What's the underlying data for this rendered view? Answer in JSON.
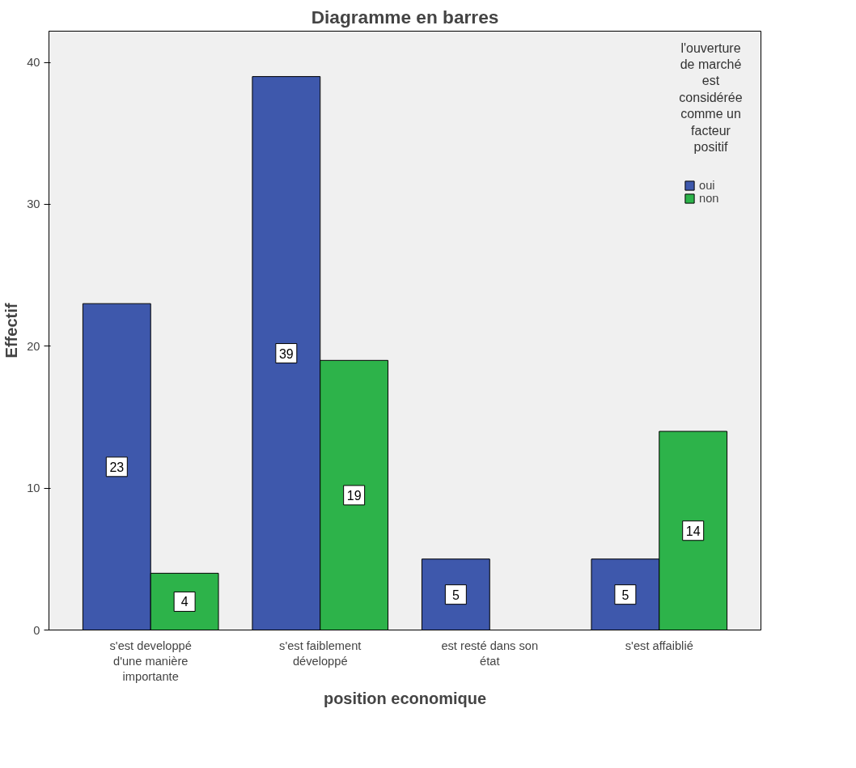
{
  "chart_data": {
    "type": "bar",
    "title": "Diagramme en barres",
    "xlabel": "position economique",
    "ylabel": "Effectif",
    "legend_title": "l'ouverture de marché est considérée comme un facteur positif",
    "categories": [
      "s'est developpé d'une manière importante",
      "s'est faiblement développé",
      "est resté dans son état",
      "s'est affaiblié"
    ],
    "series": [
      {
        "name": "oui",
        "color": "#3e58ac",
        "values": [
          23,
          39,
          5,
          5
        ]
      },
      {
        "name": "non",
        "color": "#2db34a",
        "values": [
          4,
          19,
          null,
          14
        ]
      }
    ],
    "ylim": [
      0,
      42.2
    ],
    "yticks": [
      0,
      10,
      20,
      30,
      40
    ],
    "grid": false,
    "legend": "top right",
    "data_labels": true
  }
}
